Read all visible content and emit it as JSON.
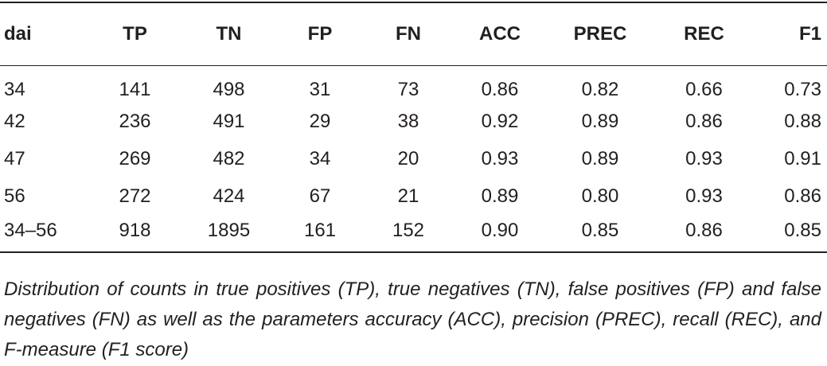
{
  "table": {
    "header": [
      "dai",
      "TP",
      "TN",
      "FP",
      "FN",
      "ACC",
      "PREC",
      "REC",
      "F1"
    ],
    "rows": [
      [
        "34",
        "141",
        "498",
        "31",
        "73",
        "0.86",
        "0.82",
        "0.66",
        "0.73"
      ],
      [
        "42",
        "236",
        "491",
        "29",
        "38",
        "0.92",
        "0.89",
        "0.86",
        "0.88"
      ],
      [
        "47",
        "269",
        "482",
        "34",
        "20",
        "0.93",
        "0.89",
        "0.93",
        "0.91"
      ],
      [
        "56",
        "272",
        "424",
        "67",
        "21",
        "0.89",
        "0.80",
        "0.93",
        "0.86"
      ],
      [
        "34–56",
        "918",
        "1895",
        "161",
        "152",
        "0.90",
        "0.85",
        "0.86",
        "0.85"
      ]
    ],
    "caption": "Distribution of counts in true positives (TP), true negatives (TN), false positives (FP) and false negatives (FN) as well as the parameters accuracy (ACC), precision (PREC), recall (REC), and F-measure (F1 score)"
  }
}
